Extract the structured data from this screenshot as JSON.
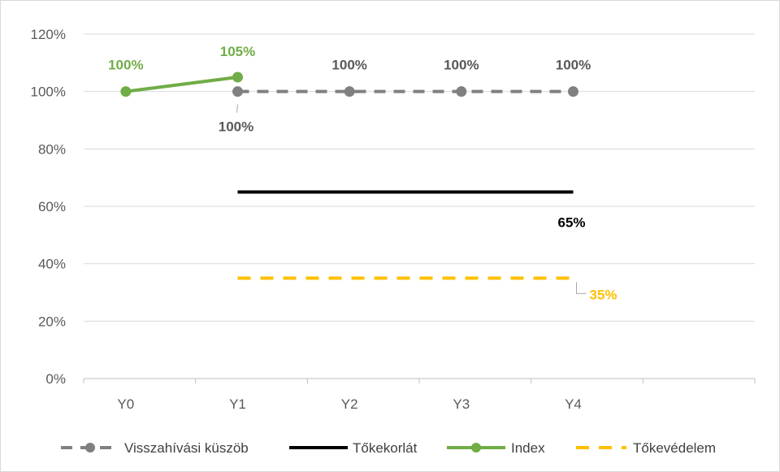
{
  "chart_data": {
    "type": "line",
    "categories": [
      "Y0",
      "Y1",
      "Y2",
      "Y3",
      "Y4"
    ],
    "ylim": [
      0,
      1.2
    ],
    "yticks": [
      0,
      0.2,
      0.4,
      0.6,
      0.8,
      1.0,
      1.2
    ],
    "ytick_labels": [
      "0%",
      "20%",
      "40%",
      "60%",
      "80%",
      "100%",
      "120%"
    ],
    "grid": true,
    "legend_position": "bottom",
    "series": [
      {
        "name": "Visszahívási küszöb",
        "color": "#808080",
        "style": "dashed-markers",
        "x": [
          "Y1",
          "Y2",
          "Y3",
          "Y4"
        ],
        "values": [
          1.0,
          1.0,
          1.0,
          1.0
        ],
        "labels": [
          "100%",
          "100%",
          "100%",
          "100%"
        ],
        "label_color": "#595959"
      },
      {
        "name": "Tőkekorlát",
        "color": "#000000",
        "style": "solid",
        "x": [
          "Y1",
          "Y4"
        ],
        "values": [
          0.65,
          0.65
        ],
        "labels": [
          "",
          "65%"
        ],
        "label_color": "#000000"
      },
      {
        "name": "Index",
        "color": "#70ad47",
        "style": "solid-markers",
        "x": [
          "Y0",
          "Y1"
        ],
        "values": [
          1.0,
          1.05
        ],
        "labels": [
          "100%",
          "105%"
        ],
        "label_color": "#70ad47"
      },
      {
        "name": "Tőkevédelem",
        "color": "#ffc000",
        "style": "dashed",
        "x": [
          "Y1",
          "Y4"
        ],
        "values": [
          0.35,
          0.35
        ],
        "labels": [
          "",
          "35%"
        ],
        "label_color": "#ffc000"
      }
    ]
  }
}
